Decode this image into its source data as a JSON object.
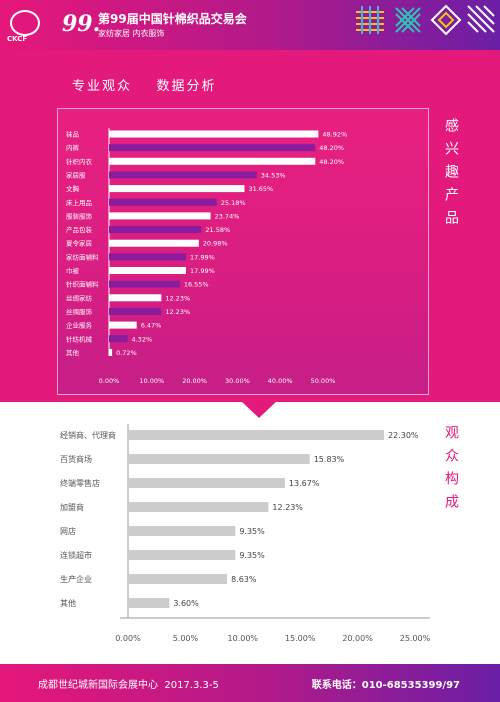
{
  "header": {
    "logo_text": "CKCF",
    "edition_mark": "99.",
    "title": "第99届中国针棉织品交易会",
    "subtitle": "家纺家居  内衣服饰"
  },
  "section1": {
    "title": "专业观众    数据分析",
    "side_label": "感兴趣产品"
  },
  "section2": {
    "side_label": "观众构成"
  },
  "footer": {
    "venue": "成都世纪城新国际会展中心",
    "date": "2017.3.3-5",
    "contact": "联系电话：010-68535399/97"
  },
  "colors": {
    "pink": "#e3197b",
    "purple": "#8a1c9e",
    "white_bar": "#ffffff",
    "gray_bar": "#cccccc"
  },
  "chart_data": [
    {
      "type": "bar",
      "orientation": "horizontal",
      "categories": [
        "袜品",
        "内裤",
        "针织内衣",
        "家居服",
        "文胸",
        "床上用品",
        "服装服饰",
        "产品包装",
        "夏令家居",
        "家纺面辅料",
        "巾被",
        "针织面辅料",
        "丝绸家纺",
        "丝绸服饰",
        "企业服务",
        "针纺机械",
        "其他"
      ],
      "values": [
        48.92,
        48.2,
        48.2,
        34.53,
        31.65,
        25.18,
        23.74,
        21.58,
        20.98,
        17.99,
        17.99,
        16.55,
        12.23,
        12.23,
        6.47,
        4.32,
        0.72
      ],
      "value_labels": [
        "48.92%",
        "48.20%",
        "48.20%",
        "34.53%",
        "31.65%",
        "25.18%",
        "23.74%",
        "21.58%",
        "20.98%",
        "17.99%",
        "17.99%",
        "16.55%",
        "12.23%",
        "12.23%",
        "6.47%",
        "4.32%",
        "0.72%"
      ],
      "bar_colors": [
        "white",
        "purple"
      ],
      "xlim": [
        0,
        50
      ],
      "xticks": [
        "0.00%",
        "10.00%",
        "20.00%",
        "30.00%",
        "40.00%",
        "50.00%"
      ],
      "grid": false
    },
    {
      "type": "bar",
      "orientation": "horizontal",
      "categories": [
        "经销商、代理商",
        "百货商场",
        "终端零售店",
        "加盟商",
        "网店",
        "连锁超市",
        "生产企业",
        "其他"
      ],
      "values": [
        22.3,
        15.83,
        13.67,
        12.23,
        9.35,
        9.35,
        8.63,
        3.6
      ],
      "value_labels": [
        "22.30%",
        "15.83%",
        "13.67%",
        "12.23%",
        "9.35%",
        "9.35%",
        "8.63%",
        "3.60%"
      ],
      "xlim": [
        0,
        25
      ],
      "xticks": [
        "0.00%",
        "5.00%",
        "10.00%",
        "15.00%",
        "20.00%",
        "25.00%"
      ],
      "grid": false
    }
  ]
}
